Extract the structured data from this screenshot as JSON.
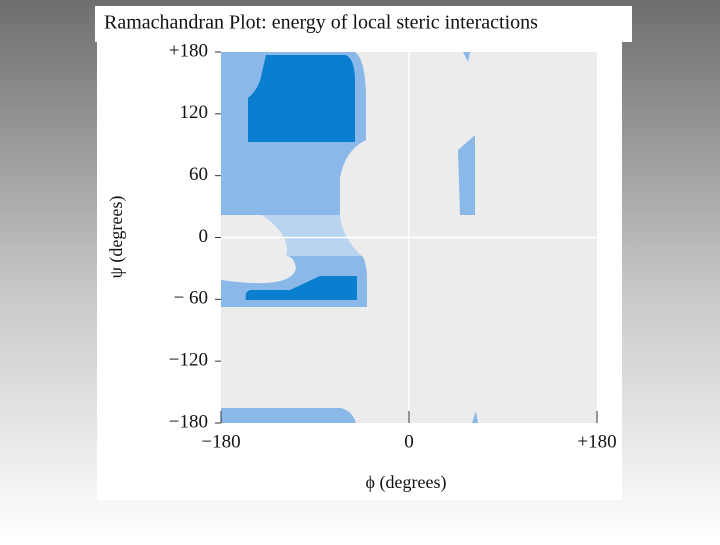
{
  "chart_data": {
    "type": "region",
    "title": "Ramachandran Plot: energy of local steric interactions",
    "xlabel": "ϕ (degrees)",
    "ylabel": "ψ (degrees)",
    "xlim": [
      -180,
      180
    ],
    "ylim": [
      -180,
      180
    ],
    "xticks": [
      {
        "value": -180,
        "label": "−180"
      },
      0,
      {
        "value": 180,
        "label": "+180"
      }
    ],
    "yticks": [
      {
        "value": 180,
        "label": "+180"
      },
      120,
      60,
      0,
      {
        "value": -60,
        "label": "− 60"
      },
      {
        "value": -120,
        "label": "−120"
      },
      {
        "value": -180,
        "label": "−180"
      }
    ]
  }
}
